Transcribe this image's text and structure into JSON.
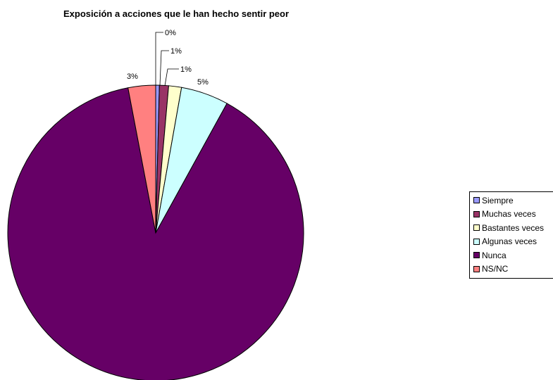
{
  "chart_data": {
    "type": "pie",
    "title": "Exposición a acciones que le han hecho sentir peor",
    "categories": [
      "Siempre",
      "Muchas veces",
      "Bastantes veces",
      "Algunas veces",
      "Nunca",
      "NS/NC"
    ],
    "values": [
      0.4,
      1.0,
      1.4,
      5.2,
      89.0,
      3.0
    ],
    "labels": [
      "0%",
      "1%",
      "1%",
      "5%",
      "",
      "3%"
    ],
    "colors": [
      "#9999FF",
      "#993366",
      "#FFFFCC",
      "#CCFFFF",
      "#660066",
      "#FF8080"
    ],
    "legend_position": "right"
  }
}
